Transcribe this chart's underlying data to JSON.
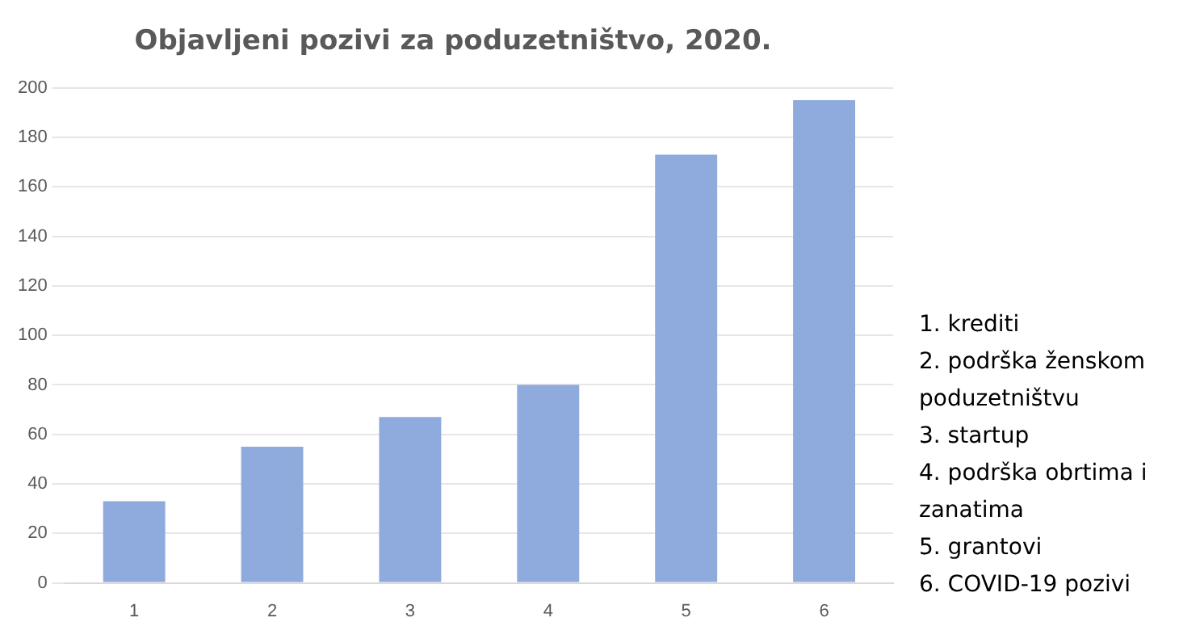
{
  "chart_data": {
    "type": "bar",
    "title": "Objavljeni pozivi za poduzetništvo, 2020.",
    "categories": [
      "1",
      "2",
      "3",
      "4",
      "5",
      "6"
    ],
    "values": [
      33,
      55,
      67,
      80,
      173,
      195
    ],
    "color": "#8faadc",
    "ylim": [
      0,
      200
    ],
    "yticks": [
      0,
      20,
      40,
      60,
      80,
      100,
      120,
      140,
      160,
      180,
      200
    ],
    "grid": "y",
    "annotations": [
      "1. krediti",
      "2. podrška ženskom poduzetništvu",
      "3. startup",
      "4. podrška obrtima i zanatima",
      "5. grantovi",
      "6. COVID-19 pozivi"
    ]
  }
}
